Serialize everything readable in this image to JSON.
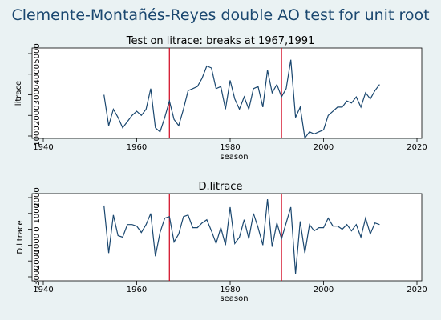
{
  "title": "Clemente-Montañés-Reyes double AO test for unit root",
  "chart_data": [
    {
      "type": "line",
      "title": "Test on litrace: breaks at 1967,1991",
      "xlabel": "season",
      "ylabel": "litrace",
      "xlim": [
        1940,
        2020
      ],
      "ylim": [
        1000,
        5000
      ],
      "xticks": [
        "1940",
        "1960",
        "1980",
        "2000",
        "2020"
      ],
      "yticks": [
        "1000",
        "2000",
        "3000",
        "4000",
        "5000"
      ],
      "grid": false,
      "breaks": [
        1967,
        1991
      ],
      "series": [
        {
          "x": [
            1953,
            1954,
            1955,
            1956,
            1957,
            1958,
            1959,
            1960,
            1961,
            1962,
            1963,
            1964,
            1965,
            1966,
            1967,
            1968,
            1969,
            1970,
            1971,
            1972,
            1973,
            1974,
            1975,
            1976,
            1977,
            1978,
            1979,
            1980,
            1981,
            1982,
            1983,
            1984,
            1985,
            1986,
            1987,
            1988,
            1989,
            1990,
            1991,
            1992,
            1993,
            1994,
            1995,
            1996,
            1997,
            1998,
            1999,
            2000,
            2001,
            2002,
            2003,
            2004,
            2005,
            2006,
            2007,
            2008,
            2009,
            2010,
            2011,
            2012
          ],
          "values": [
            3000,
            1500,
            2300,
            1900,
            1400,
            1700,
            2000,
            2200,
            2000,
            2300,
            3300,
            1400,
            1200,
            1900,
            2700,
            1800,
            1500,
            2300,
            3200,
            3300,
            3400,
            3800,
            4400,
            4300,
            3300,
            3400,
            2300,
            3700,
            2800,
            2300,
            2900,
            2300,
            3300,
            3400,
            2400,
            4200,
            3100,
            3500,
            2900,
            3300,
            4700,
            1900,
            2400,
            900,
            1200,
            1100,
            1200,
            1300,
            2000,
            2200,
            2400,
            2400,
            2700,
            2600,
            2900,
            2400,
            3100,
            2800,
            3200,
            3500
          ]
        }
      ]
    },
    {
      "type": "line",
      "title": "D.litrace",
      "xlabel": "season",
      "ylabel": "D.litrace",
      "xlim": [
        1940,
        2020
      ],
      "ylim": [
        -3000,
        2000
      ],
      "xticks": [
        "1940",
        "1960",
        "1980",
        "2000",
        "2020"
      ],
      "yticks": [
        "-3000",
        "-2000",
        "-1000",
        "0",
        "1000",
        "2000"
      ],
      "grid": false,
      "breaks": [
        1967,
        1991
      ],
      "series": [
        {
          "x": [
            1953,
            1954,
            1955,
            1956,
            1957,
            1958,
            1959,
            1960,
            1961,
            1962,
            1963,
            1964,
            1965,
            1966,
            1967,
            1968,
            1969,
            1970,
            1971,
            1972,
            1973,
            1974,
            1975,
            1976,
            1977,
            1978,
            1979,
            1980,
            1981,
            1982,
            1983,
            1984,
            1985,
            1986,
            1987,
            1988,
            1989,
            1990,
            1991,
            1992,
            1993,
            1994,
            1995,
            1996,
            1997,
            1998,
            1999,
            2000,
            2001,
            2002,
            2003,
            2004,
            2005,
            2006,
            2007,
            2008,
            2009,
            2010,
            2011,
            2012
          ],
          "values": [
            1500,
            -1500,
            900,
            -400,
            -500,
            300,
            300,
            200,
            -200,
            300,
            1000,
            -1700,
            -200,
            700,
            800,
            -800,
            -300,
            800,
            900,
            100,
            100,
            400,
            600,
            -100,
            -900,
            100,
            -1000,
            1400,
            -900,
            -500,
            600,
            -600,
            1000,
            100,
            -1000,
            1900,
            -1100,
            400,
            -600,
            400,
            1400,
            -2800,
            500,
            -1500,
            300,
            -100,
            100,
            100,
            700,
            200,
            200,
            0,
            300,
            -100,
            300,
            -500,
            700,
            -300,
            400,
            300
          ]
        }
      ]
    }
  ]
}
